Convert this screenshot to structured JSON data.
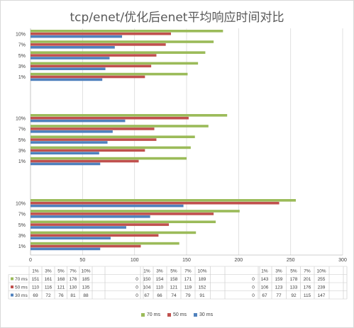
{
  "chart_data": {
    "type": "bar",
    "orientation": "horizontal",
    "title": "tcp/enet/优化后enet平均响应时间对比",
    "categories": [
      "1%",
      "3%",
      "5%",
      "7%",
      "10%"
    ],
    "xlim": [
      0,
      300
    ],
    "x_ticks": [
      "0",
      "50",
      "100",
      "150",
      "200",
      "250",
      "300"
    ],
    "grid": true,
    "legend_position": "bottom",
    "series_colors": {
      "70 ms": "#9bbb59",
      "50 ms": "#c0504d",
      "30 ms": "#4f81bd"
    },
    "groups": [
      {
        "series": [
          {
            "name": "70 ms",
            "values": [
              151,
              161,
              168,
              176,
              185
            ]
          },
          {
            "name": "50 ms",
            "values": [
              110,
              116,
              121,
              130,
              135
            ]
          },
          {
            "name": "30 ms",
            "values": [
              69,
              72,
              76,
              81,
              88
            ]
          }
        ]
      },
      {
        "series": [
          {
            "name": "70 ms",
            "values": [
              150,
              154,
              158,
              171,
              189
            ]
          },
          {
            "name": "50 ms",
            "values": [
              104,
              110,
              121,
              119,
              152
            ]
          },
          {
            "name": "30 ms",
            "values": [
              67,
              66,
              74,
              79,
              91
            ]
          }
        ]
      },
      {
        "series": [
          {
            "name": "70 ms",
            "values": [
              143,
              159,
              178,
              201,
              255
            ]
          },
          {
            "name": "50 ms",
            "values": [
              106,
              123,
              133,
              176,
              239
            ]
          },
          {
            "name": "30 ms",
            "values": [
              67,
              77,
              92,
              115,
              147
            ]
          }
        ]
      }
    ],
    "table": {
      "separator_value": "0"
    }
  },
  "legend": [
    {
      "label": "70 ms",
      "color": "#9bbb59"
    },
    {
      "label": "50 ms",
      "color": "#c0504d"
    },
    {
      "label": "30 ms",
      "color": "#4f81bd"
    }
  ]
}
